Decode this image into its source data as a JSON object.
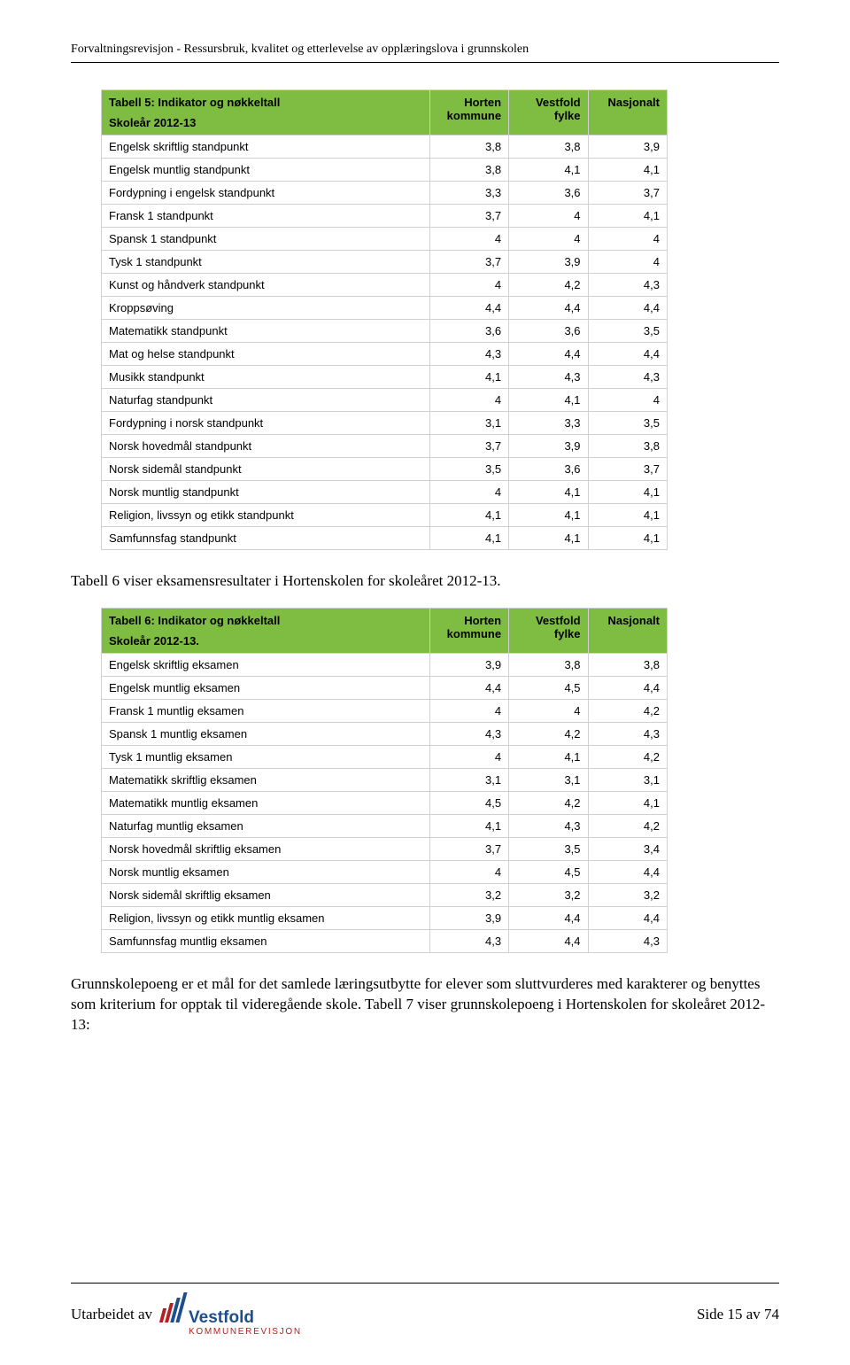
{
  "header": {
    "running_title": "Forvaltningsrevisjon - Ressursbruk, kvalitet og etterlevelse av opplæringslova i grunnskolen"
  },
  "table5": {
    "title_line1": "Tabell 5: Indikator og nøkkeltall",
    "title_line2": "Skoleår 2012-13",
    "col1": "Horten kommune",
    "col2": "Vestfold fylke",
    "col3": "Nasjonalt",
    "header_bg": "#7ebd42",
    "rows": [
      {
        "label": "Engelsk skriftlig standpunkt",
        "c1": "3,8",
        "c2": "3,8",
        "c3": "3,9"
      },
      {
        "label": "Engelsk muntlig standpunkt",
        "c1": "3,8",
        "c2": "4,1",
        "c3": "4,1"
      },
      {
        "label": "Fordypning i engelsk standpunkt",
        "c1": "3,3",
        "c2": "3,6",
        "c3": "3,7"
      },
      {
        "label": "Fransk 1 standpunkt",
        "c1": "3,7",
        "c2": "4",
        "c3": "4,1"
      },
      {
        "label": "Spansk 1 standpunkt",
        "c1": "4",
        "c2": "4",
        "c3": "4"
      },
      {
        "label": "Tysk 1 standpunkt",
        "c1": "3,7",
        "c2": "3,9",
        "c3": "4"
      },
      {
        "label": "Kunst og håndverk standpunkt",
        "c1": "4",
        "c2": "4,2",
        "c3": "4,3"
      },
      {
        "label": "Kroppsøving",
        "c1": "4,4",
        "c2": "4,4",
        "c3": "4,4"
      },
      {
        "label": "Matematikk standpunkt",
        "c1": "3,6",
        "c2": "3,6",
        "c3": "3,5"
      },
      {
        "label": "Mat og helse standpunkt",
        "c1": "4,3",
        "c2": "4,4",
        "c3": "4,4"
      },
      {
        "label": "Musikk standpunkt",
        "c1": "4,1",
        "c2": "4,3",
        "c3": "4,3"
      },
      {
        "label": "Naturfag standpunkt",
        "c1": "4",
        "c2": "4,1",
        "c3": "4"
      },
      {
        "label": "Fordypning i norsk standpunkt",
        "c1": "3,1",
        "c2": "3,3",
        "c3": "3,5"
      },
      {
        "label": "Norsk hovedmål standpunkt",
        "c1": "3,7",
        "c2": "3,9",
        "c3": "3,8"
      },
      {
        "label": "Norsk sidemål standpunkt",
        "c1": "3,5",
        "c2": "3,6",
        "c3": "3,7"
      },
      {
        "label": "Norsk muntlig standpunkt",
        "c1": "4",
        "c2": "4,1",
        "c3": "4,1"
      },
      {
        "label": "Religion, livssyn og etikk standpunkt",
        "c1": "4,1",
        "c2": "4,1",
        "c3": "4,1"
      },
      {
        "label": "Samfunnsfag standpunkt",
        "c1": "4,1",
        "c2": "4,1",
        "c3": "4,1"
      }
    ]
  },
  "intro6": "Tabell 6 viser eksamensresultater i Hortenskolen for skoleåret 2012-13.",
  "table6": {
    "title_line1": "Tabell 6: Indikator og nøkkeltall",
    "title_line2": "Skoleår 2012-13.",
    "col1": "Horten kommune",
    "col2": "Vestfold fylke",
    "col3": "Nasjonalt",
    "header_bg": "#7ebd42",
    "rows": [
      {
        "label": "Engelsk skriftlig eksamen",
        "c1": "3,9",
        "c2": "3,8",
        "c3": "3,8"
      },
      {
        "label": "Engelsk muntlig eksamen",
        "c1": "4,4",
        "c2": "4,5",
        "c3": "4,4"
      },
      {
        "label": "Fransk 1 muntlig eksamen",
        "c1": "4",
        "c2": "4",
        "c3": "4,2"
      },
      {
        "label": "Spansk 1 muntlig eksamen",
        "c1": "4,3",
        "c2": "4,2",
        "c3": "4,3"
      },
      {
        "label": "Tysk 1 muntlig eksamen",
        "c1": "4",
        "c2": "4,1",
        "c3": "4,2"
      },
      {
        "label": "Matematikk skriftlig eksamen",
        "c1": "3,1",
        "c2": "3,1",
        "c3": "3,1"
      },
      {
        "label": "Matematikk muntlig eksamen",
        "c1": "4,5",
        "c2": "4,2",
        "c3": "4,1"
      },
      {
        "label": "Naturfag muntlig eksamen",
        "c1": "4,1",
        "c2": "4,3",
        "c3": "4,2"
      },
      {
        "label": "Norsk hovedmål skriftlig eksamen",
        "c1": "3,7",
        "c2": "3,5",
        "c3": "3,4"
      },
      {
        "label": "Norsk muntlig eksamen",
        "c1": "4",
        "c2": "4,5",
        "c3": "4,4"
      },
      {
        "label": "Norsk sidemål skriftlig eksamen",
        "c1": "3,2",
        "c2": "3,2",
        "c3": "3,2"
      },
      {
        "label": "Religion, livssyn og etikk muntlig eksamen",
        "c1": "3,9",
        "c2": "4,4",
        "c3": "4,4"
      },
      {
        "label": "Samfunnsfag muntlig eksamen",
        "c1": "4,3",
        "c2": "4,4",
        "c3": "4,3"
      }
    ]
  },
  "closing": "Grunnskolepoeng er et mål for det samlede læringsutbytte for elever som sluttvurderes med karakterer og benyttes som kriterium for opptak til videregående skole. Tabell 7 viser grunnskolepoeng i Hortenskolen for skoleåret 2012-13:",
  "footer": {
    "left": "Utarbeidet av",
    "logo_main": "Vestfold",
    "logo_sub": "KOMMUNEREVISJON",
    "stripe_colors": [
      "#b22222",
      "#b22222",
      "#1c4f8b",
      "#1c4f8b"
    ],
    "stripe_heights": [
      16,
      22,
      28,
      34
    ],
    "right": "Side 15 av 74"
  }
}
